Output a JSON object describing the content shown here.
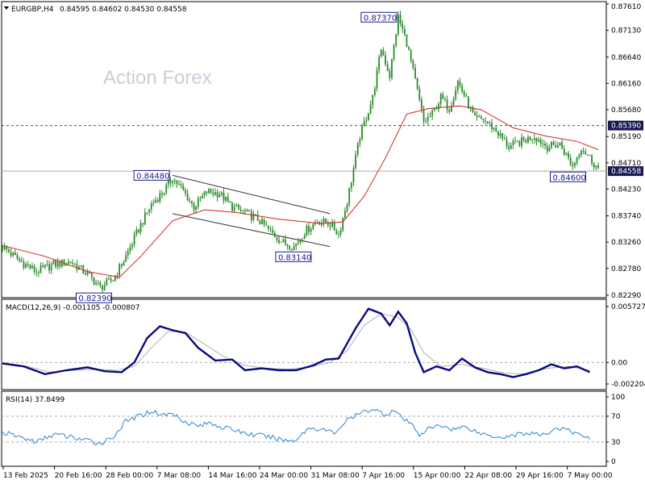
{
  "header": {
    "symbol": "EURGBP,H4",
    "ohlc": "0.84595 0.84602 0.84530 0.84558",
    "macd_label": "MACD(12,26,9) -0.001105 -0.000807",
    "rsi_label": "RSI(14) 37.8499"
  },
  "watermark": "Action Forex",
  "colors": {
    "candle": "#2a8a2a",
    "ma": "#d62020",
    "macd_main": "#0a0a80",
    "macd_signal": "#b0b0b0",
    "rsi": "#2b84d4",
    "current_price_tag": "#1a1a50",
    "callout_border": "#1a1a8c"
  },
  "chart_data": [
    {
      "type": "candlestick",
      "title": "EURGBP,H4",
      "x_tick_labels": [
        "13 Feb 2025",
        "20 Feb 16:00",
        "28 Feb 00:00",
        "7 Mar 08:00",
        "14 Mar 16:00",
        "24 Mar 00:00",
        "31 Mar 08:00",
        "7 Apr 16:00",
        "15 Apr 00:00",
        "22 Apr 08:00",
        "29 Apr 16:00",
        "7 May 00:00"
      ],
      "y_tick_labels": [
        "0.87610",
        "0.87130",
        "0.86640",
        "0.86160",
        "0.85680",
        "0.85190",
        "0.84710",
        "0.84230",
        "0.83740",
        "0.83260",
        "0.82780",
        "0.82290"
      ],
      "ylim": [
        0.8229,
        0.8761
      ],
      "close_path": [
        [
          0,
          0.8318
        ],
        [
          8,
          0.8292
        ],
        [
          16,
          0.8272
        ],
        [
          24,
          0.8285
        ],
        [
          32,
          0.829
        ],
        [
          40,
          0.8268
        ],
        [
          46,
          0.8243
        ],
        [
          52,
          0.8258
        ],
        [
          58,
          0.83
        ],
        [
          64,
          0.835
        ],
        [
          70,
          0.8395
        ],
        [
          76,
          0.842
        ],
        [
          80,
          0.8443
        ],
        [
          84,
          0.8425
        ],
        [
          90,
          0.839
        ],
        [
          96,
          0.8418
        ],
        [
          102,
          0.8415
        ],
        [
          108,
          0.839
        ],
        [
          114,
          0.838
        ],
        [
          120,
          0.8368
        ],
        [
          126,
          0.8345
        ],
        [
          132,
          0.8325
        ],
        [
          137,
          0.8318
        ],
        [
          142,
          0.8345
        ],
        [
          148,
          0.8365
        ],
        [
          154,
          0.836
        ],
        [
          158,
          0.834
        ],
        [
          162,
          0.84
        ],
        [
          168,
          0.852
        ],
        [
          174,
          0.859
        ],
        [
          178,
          0.868
        ],
        [
          182,
          0.863
        ],
        [
          186,
          0.8737
        ],
        [
          190,
          0.869
        ],
        [
          194,
          0.862
        ],
        [
          198,
          0.8545
        ],
        [
          202,
          0.856
        ],
        [
          206,
          0.859
        ],
        [
          210,
          0.857
        ],
        [
          214,
          0.862
        ],
        [
          218,
          0.8585
        ],
        [
          222,
          0.855
        ],
        [
          226,
          0.855
        ],
        [
          232,
          0.853
        ],
        [
          238,
          0.85
        ],
        [
          244,
          0.851
        ],
        [
          250,
          0.852
        ],
        [
          256,
          0.85
        ],
        [
          262,
          0.8505
        ],
        [
          268,
          0.8465
        ],
        [
          272,
          0.85
        ],
        [
          276,
          0.848
        ],
        [
          280,
          0.846
        ]
      ],
      "moving_average": [
        [
          0,
          0.832
        ],
        [
          20,
          0.83
        ],
        [
          40,
          0.8272
        ],
        [
          55,
          0.8262
        ],
        [
          65,
          0.83
        ],
        [
          80,
          0.8365
        ],
        [
          95,
          0.8385
        ],
        [
          110,
          0.838
        ],
        [
          130,
          0.8368
        ],
        [
          150,
          0.836
        ],
        [
          160,
          0.8363
        ],
        [
          170,
          0.841
        ],
        [
          180,
          0.848
        ],
        [
          190,
          0.856
        ],
        [
          200,
          0.857
        ],
        [
          215,
          0.8575
        ],
        [
          225,
          0.8568
        ],
        [
          240,
          0.8535
        ],
        [
          255,
          0.852
        ],
        [
          270,
          0.851
        ],
        [
          280,
          0.8495
        ]
      ],
      "channel_upper": [
        [
          80,
          0.8448
        ],
        [
          152,
          0.8378
        ]
      ],
      "channel_lower": [
        [
          80,
          0.8378
        ],
        [
          152,
          0.8318
        ]
      ],
      "horizontal_levels": [
        {
          "value": "0.85390",
          "style": "dashed"
        },
        {
          "value": "0.84558",
          "style": "solid",
          "current_price": true
        }
      ],
      "annotations": [
        {
          "label": "0.87370",
          "value": 0.8737
        },
        {
          "label": "0.84480",
          "value": 0.8448
        },
        {
          "label": "0.83140",
          "value": 0.8314
        },
        {
          "label": "0.82390",
          "value": 0.8239
        },
        {
          "label": "0.84600",
          "value": 0.846
        }
      ]
    },
    {
      "type": "line",
      "title": "MACD(12,26,9) -0.001105 -0.000807",
      "y_tick_labels": [
        "0.005727",
        "0.00",
        "-0.002204"
      ],
      "ylim": [
        -0.002204,
        0.005727
      ],
      "main": [
        [
          0,
          -0.0001
        ],
        [
          10,
          -0.0004
        ],
        [
          20,
          -0.0012
        ],
        [
          30,
          -0.0008
        ],
        [
          40,
          -0.0005
        ],
        [
          48,
          -0.0009
        ],
        [
          56,
          -0.001
        ],
        [
          62,
          0.0
        ],
        [
          68,
          0.0025
        ],
        [
          74,
          0.0037
        ],
        [
          80,
          0.0033
        ],
        [
          86,
          0.003
        ],
        [
          92,
          0.0015
        ],
        [
          100,
          0.0002
        ],
        [
          108,
          0.0003
        ],
        [
          114,
          -0.0008
        ],
        [
          122,
          -0.0006
        ],
        [
          130,
          -0.0008
        ],
        [
          138,
          -0.0008
        ],
        [
          146,
          -0.0003
        ],
        [
          152,
          0.0003
        ],
        [
          158,
          0.0004
        ],
        [
          166,
          0.0035
        ],
        [
          172,
          0.0055
        ],
        [
          178,
          0.005
        ],
        [
          182,
          0.0038
        ],
        [
          186,
          0.0052
        ],
        [
          190,
          0.004
        ],
        [
          194,
          0.001
        ],
        [
          198,
          -0.001
        ],
        [
          204,
          -0.0004
        ],
        [
          210,
          -0.0008
        ],
        [
          216,
          0.0004
        ],
        [
          222,
          -0.0005
        ],
        [
          228,
          -0.001
        ],
        [
          234,
          -0.0012
        ],
        [
          240,
          -0.0015
        ],
        [
          246,
          -0.0012
        ],
        [
          252,
          -0.0008
        ],
        [
          258,
          -0.0002
        ],
        [
          264,
          -0.0006
        ],
        [
          270,
          -0.0004
        ],
        [
          276,
          -0.001
        ]
      ],
      "signal": [
        [
          0,
          -0.0001
        ],
        [
          12,
          -0.0004
        ],
        [
          22,
          -0.001
        ],
        [
          34,
          -0.0008
        ],
        [
          44,
          -0.0007
        ],
        [
          54,
          -0.0008
        ],
        [
          62,
          -0.0004
        ],
        [
          70,
          0.0015
        ],
        [
          78,
          0.0032
        ],
        [
          86,
          0.0031
        ],
        [
          94,
          0.002
        ],
        [
          104,
          0.0006
        ],
        [
          114,
          -0.0003
        ],
        [
          124,
          -0.0006
        ],
        [
          134,
          -0.0007
        ],
        [
          144,
          -0.0005
        ],
        [
          154,
          0.0
        ],
        [
          162,
          0.0012
        ],
        [
          170,
          0.0038
        ],
        [
          178,
          0.005
        ],
        [
          186,
          0.0046
        ],
        [
          192,
          0.0034
        ],
        [
          198,
          0.001
        ],
        [
          206,
          -0.0004
        ],
        [
          216,
          -0.0002
        ],
        [
          226,
          -0.0006
        ],
        [
          236,
          -0.0011
        ],
        [
          246,
          -0.0012
        ],
        [
          256,
          -0.0006
        ],
        [
          266,
          -0.0004
        ],
        [
          276,
          -0.0008
        ]
      ]
    },
    {
      "type": "line",
      "title": "RSI(14) 37.8499",
      "y_tick_labels": [
        "100",
        "70",
        "30",
        "0"
      ],
      "ylim": [
        0,
        100
      ],
      "levels": [
        70,
        30
      ],
      "values": [
        [
          0,
          45
        ],
        [
          8,
          38
        ],
        [
          16,
          30
        ],
        [
          24,
          42
        ],
        [
          32,
          38
        ],
        [
          40,
          32
        ],
        [
          46,
          28
        ],
        [
          52,
          38
        ],
        [
          58,
          62
        ],
        [
          64,
          70
        ],
        [
          70,
          78
        ],
        [
          76,
          72
        ],
        [
          80,
          74
        ],
        [
          86,
          62
        ],
        [
          92,
          55
        ],
        [
          98,
          60
        ],
        [
          104,
          52
        ],
        [
          110,
          48
        ],
        [
          116,
          42
        ],
        [
          122,
          40
        ],
        [
          128,
          36
        ],
        [
          134,
          32
        ],
        [
          138,
          34
        ],
        [
          144,
          52
        ],
        [
          150,
          50
        ],
        [
          156,
          44
        ],
        [
          162,
          64
        ],
        [
          168,
          74
        ],
        [
          174,
          82
        ],
        [
          180,
          72
        ],
        [
          184,
          80
        ],
        [
          188,
          66
        ],
        [
          192,
          58
        ],
        [
          196,
          42
        ],
        [
          200,
          50
        ],
        [
          206,
          56
        ],
        [
          212,
          50
        ],
        [
          218,
          54
        ],
        [
          224,
          44
        ],
        [
          230,
          40
        ],
        [
          236,
          38
        ],
        [
          242,
          42
        ],
        [
          248,
          44
        ],
        [
          254,
          40
        ],
        [
          260,
          52
        ],
        [
          266,
          48
        ],
        [
          270,
          42
        ],
        [
          276,
          38
        ]
      ]
    }
  ]
}
